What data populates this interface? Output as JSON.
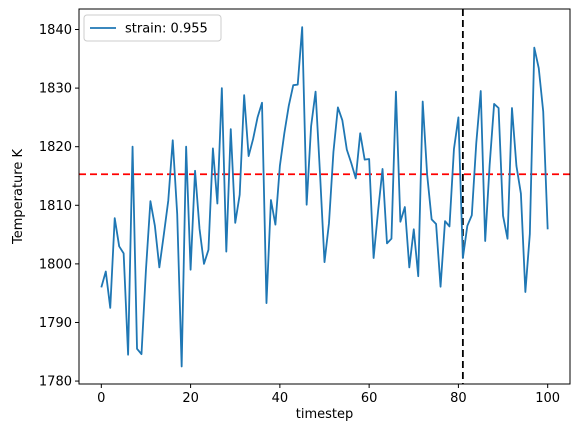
{
  "chart_data": {
    "type": "line",
    "xlabel": "timestep",
    "ylabel": "Temperature K",
    "xlim": [
      -5,
      105
    ],
    "ylim": [
      1779.5,
      1843.5
    ],
    "xticks": [
      0,
      20,
      40,
      60,
      80,
      100
    ],
    "yticks": [
      1780,
      1790,
      1800,
      1810,
      1820,
      1830,
      1840
    ],
    "grid": false,
    "legend_position": "top-left",
    "series": [
      {
        "name": "strain: 0.955",
        "color": "#1f77b4",
        "x": [
          0,
          1,
          2,
          3,
          4,
          5,
          6,
          7,
          8,
          9,
          10,
          11,
          12,
          13,
          14,
          15,
          16,
          17,
          18,
          19,
          20,
          21,
          22,
          23,
          24,
          25,
          26,
          27,
          28,
          29,
          30,
          31,
          32,
          33,
          34,
          35,
          36,
          37,
          38,
          39,
          40,
          41,
          42,
          43,
          44,
          45,
          46,
          47,
          48,
          49,
          50,
          51,
          52,
          53,
          54,
          55,
          56,
          57,
          58,
          59,
          60,
          61,
          62,
          63,
          64,
          65,
          66,
          67,
          68,
          69,
          70,
          71,
          72,
          73,
          74,
          75,
          76,
          77,
          78,
          79,
          80,
          81,
          82,
          83,
          84,
          85,
          86,
          87,
          88,
          89,
          90,
          91,
          92,
          93,
          94,
          95,
          96,
          97,
          98,
          99,
          100
        ],
        "y": [
          1796,
          1798.7,
          1792.5,
          1807.8,
          1803,
          1801.8,
          1784.5,
          1820,
          1785.5,
          1784.6,
          1799,
          1810.7,
          1806.5,
          1799.4,
          1805,
          1810.8,
          1821.1,
          1808.5,
          1782.5,
          1820,
          1799,
          1815.9,
          1806,
          1800,
          1802.4,
          1819.7,
          1810.3,
          1830,
          1802.1,
          1823,
          1807,
          1811.8,
          1828.8,
          1818.4,
          1821.3,
          1825,
          1827.5,
          1793.3,
          1810.9,
          1806.7,
          1816.7,
          1822.3,
          1827,
          1830.5,
          1830.6,
          1840.4,
          1810.1,
          1823.5,
          1829.4,
          1815.3,
          1800.3,
          1806.9,
          1819.1,
          1826.7,
          1824.5,
          1819.5,
          1817.2,
          1814.6,
          1822.3,
          1817.8,
          1817.9,
          1801,
          1809,
          1816.2,
          1803.5,
          1804.3,
          1829.4,
          1807.2,
          1809.7,
          1799.4,
          1805.9,
          1797.9,
          1827.7,
          1815.2,
          1807.6,
          1806.8,
          1796.1,
          1807.3,
          1806.4,
          1819.6,
          1825,
          1801,
          1806.5,
          1808.3,
          1820.6,
          1829.5,
          1803.9,
          1816.9,
          1827.3,
          1826.6,
          1808.2,
          1804.3,
          1826.6,
          1816.7,
          1812,
          1795.2,
          1805.1,
          1836.9,
          1833.4,
          1826,
          1805.9
        ]
      }
    ],
    "hlines": [
      {
        "y": 1815.3,
        "color": "#ff0000",
        "style": "dashed"
      }
    ],
    "vlines": [
      {
        "x": 81,
        "color": "#000000",
        "style": "dashed"
      }
    ]
  }
}
